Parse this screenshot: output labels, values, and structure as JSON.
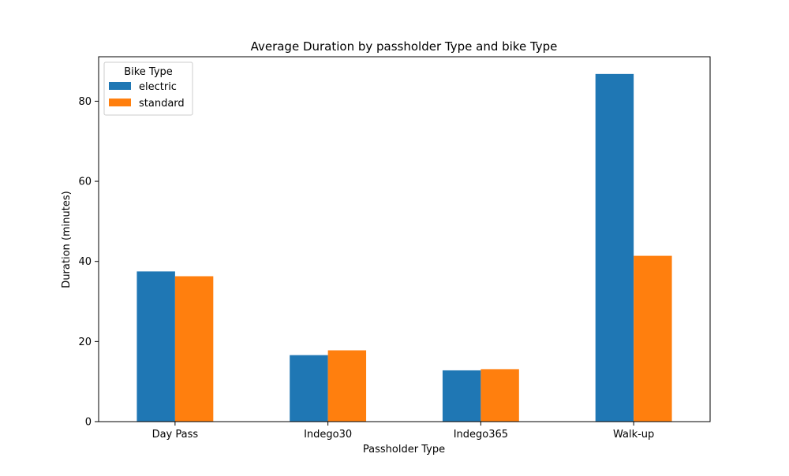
{
  "chart_data": {
    "type": "bar",
    "title": "Average Duration by passholder Type and bike Type",
    "xlabel": "Passholder Type",
    "ylabel": "Duration (minutes)",
    "categories": [
      "Day Pass",
      "Indego30",
      "Indego365",
      "Walk-up"
    ],
    "series": [
      {
        "name": "electric",
        "color": "#1f77b4",
        "values": [
          37.5,
          16.6,
          12.8,
          86.8
        ]
      },
      {
        "name": "standard",
        "color": "#ff7f0e",
        "values": [
          36.3,
          17.8,
          13.1,
          41.4
        ]
      }
    ],
    "ylim": [
      0,
      91.1
    ],
    "yticks": [
      0,
      20,
      40,
      60,
      80
    ],
    "legend": {
      "title": "Bike Type",
      "position": "top-left"
    },
    "grid": false
  }
}
